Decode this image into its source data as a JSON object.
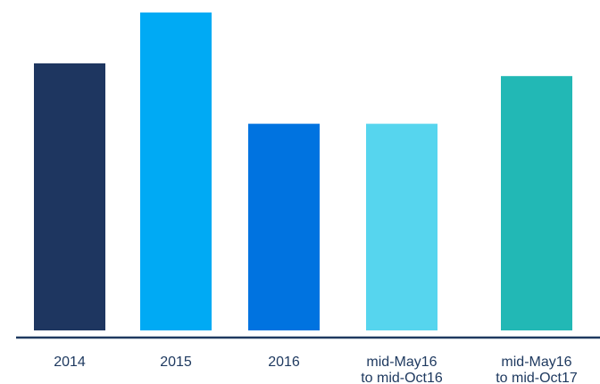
{
  "chart_data": {
    "type": "bar",
    "categories": [
      [
        "2014"
      ],
      [
        "2015"
      ],
      [
        "2016"
      ],
      [
        "mid-May16",
        "to mid-Oct16"
      ],
      [
        "mid-May16",
        "to mid-Oct17"
      ]
    ],
    "values": [
      84,
      100,
      65,
      65,
      80
    ],
    "ylim": [
      0,
      100
    ],
    "colors": [
      "#1e3660",
      "#00aaf4",
      "#0073e0",
      "#56d5ee",
      "#22b8b5"
    ],
    "grid": false,
    "legend": "none",
    "title": "",
    "xlabel": "",
    "ylabel": ""
  }
}
